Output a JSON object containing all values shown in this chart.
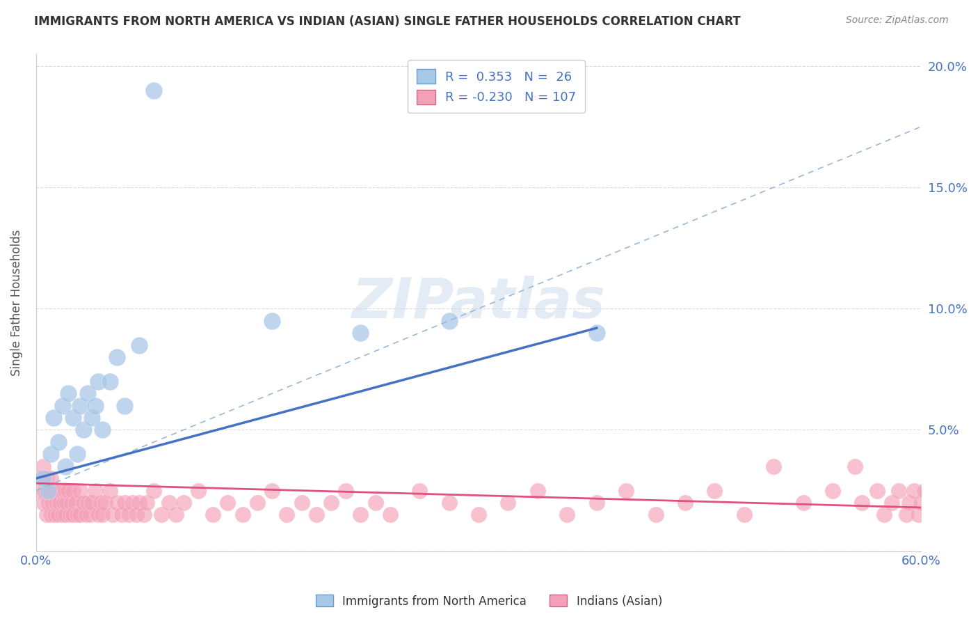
{
  "title": "IMMIGRANTS FROM NORTH AMERICA VS INDIAN (ASIAN) SINGLE FATHER HOUSEHOLDS CORRELATION CHART",
  "source": "Source: ZipAtlas.com",
  "ylabel": "Single Father Households",
  "legend_labels": [
    "Immigrants from North America",
    "Indians (Asian)"
  ],
  "blue_R": 0.353,
  "blue_N": 26,
  "pink_R": -0.23,
  "pink_N": 107,
  "blue_color": "#a8c8e8",
  "pink_color": "#f4a0b8",
  "blue_line_color": "#4472c4",
  "pink_line_color": "#e05080",
  "dashed_line_color": "#99b8d8",
  "xlim": [
    0.0,
    0.6
  ],
  "ylim": [
    0.0,
    0.205
  ],
  "watermark": "ZIPatlas",
  "background_color": "#ffffff",
  "grid_color": "#d8d8d8",
  "blue_x": [
    0.005,
    0.008,
    0.01,
    0.012,
    0.015,
    0.018,
    0.02,
    0.022,
    0.025,
    0.028,
    0.03,
    0.032,
    0.035,
    0.038,
    0.04,
    0.042,
    0.045,
    0.05,
    0.055,
    0.06,
    0.07,
    0.08,
    0.16,
    0.22,
    0.28,
    0.38
  ],
  "blue_y": [
    0.03,
    0.025,
    0.04,
    0.055,
    0.045,
    0.06,
    0.035,
    0.065,
    0.055,
    0.04,
    0.06,
    0.05,
    0.065,
    0.055,
    0.06,
    0.07,
    0.05,
    0.07,
    0.08,
    0.06,
    0.085,
    0.19,
    0.095,
    0.09,
    0.095,
    0.09
  ],
  "pink_x": [
    0.003,
    0.004,
    0.005,
    0.005,
    0.006,
    0.007,
    0.007,
    0.008,
    0.009,
    0.01,
    0.01,
    0.01,
    0.011,
    0.012,
    0.013,
    0.014,
    0.015,
    0.015,
    0.016,
    0.017,
    0.018,
    0.019,
    0.02,
    0.02,
    0.021,
    0.022,
    0.023,
    0.024,
    0.025,
    0.025,
    0.027,
    0.028,
    0.03,
    0.03,
    0.032,
    0.034,
    0.035,
    0.037,
    0.038,
    0.04,
    0.042,
    0.044,
    0.045,
    0.047,
    0.05,
    0.052,
    0.055,
    0.058,
    0.06,
    0.063,
    0.065,
    0.068,
    0.07,
    0.073,
    0.075,
    0.08,
    0.085,
    0.09,
    0.095,
    0.1,
    0.11,
    0.12,
    0.13,
    0.14,
    0.15,
    0.16,
    0.17,
    0.18,
    0.19,
    0.2,
    0.21,
    0.22,
    0.23,
    0.24,
    0.26,
    0.28,
    0.3,
    0.32,
    0.34,
    0.36,
    0.38,
    0.4,
    0.42,
    0.44,
    0.46,
    0.48,
    0.5,
    0.52,
    0.54,
    0.555,
    0.56,
    0.57,
    0.575,
    0.58,
    0.585,
    0.59,
    0.592,
    0.595,
    0.598,
    0.6,
    0.602,
    0.605,
    0.61,
    0.62,
    0.63,
    0.64,
    0.65
  ],
  "pink_y": [
    0.03,
    0.025,
    0.02,
    0.035,
    0.025,
    0.015,
    0.03,
    0.02,
    0.025,
    0.015,
    0.025,
    0.03,
    0.02,
    0.025,
    0.015,
    0.02,
    0.025,
    0.015,
    0.02,
    0.025,
    0.015,
    0.02,
    0.025,
    0.015,
    0.02,
    0.025,
    0.015,
    0.02,
    0.025,
    0.015,
    0.02,
    0.015,
    0.025,
    0.015,
    0.02,
    0.015,
    0.02,
    0.015,
    0.02,
    0.025,
    0.015,
    0.02,
    0.015,
    0.02,
    0.025,
    0.015,
    0.02,
    0.015,
    0.02,
    0.015,
    0.02,
    0.015,
    0.02,
    0.015,
    0.02,
    0.025,
    0.015,
    0.02,
    0.015,
    0.02,
    0.025,
    0.015,
    0.02,
    0.015,
    0.02,
    0.025,
    0.015,
    0.02,
    0.015,
    0.02,
    0.025,
    0.015,
    0.02,
    0.015,
    0.025,
    0.02,
    0.015,
    0.02,
    0.025,
    0.015,
    0.02,
    0.025,
    0.015,
    0.02,
    0.025,
    0.015,
    0.035,
    0.02,
    0.025,
    0.035,
    0.02,
    0.025,
    0.015,
    0.02,
    0.025,
    0.015,
    0.02,
    0.025,
    0.015,
    0.02,
    0.025,
    0.015,
    0.02,
    0.015,
    0.02,
    0.015,
    0.02
  ],
  "blue_line_x": [
    0.0,
    0.38
  ],
  "blue_line_y": [
    0.03,
    0.092
  ],
  "dash_line_x": [
    0.0,
    0.6
  ],
  "dash_line_y": [
    0.025,
    0.175
  ],
  "pink_line_x": [
    0.0,
    0.6
  ],
  "pink_line_y": [
    0.028,
    0.018
  ]
}
